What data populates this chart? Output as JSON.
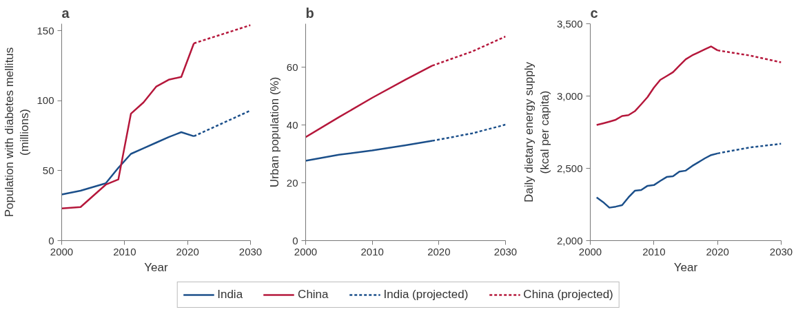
{
  "chart_data": [
    {
      "type": "line",
      "title": "a",
      "xlabel": "Year",
      "ylabel": "Population with diabetes mellitus\n(millions)",
      "xlim": [
        2000,
        2030
      ],
      "ylim": [
        0,
        155
      ],
      "xticks": [
        2000,
        2010,
        2020,
        2030
      ],
      "yticks": [
        0,
        50,
        100,
        150
      ],
      "grid": false,
      "legend": false,
      "series": [
        {
          "color": "#1b4f8a",
          "line_style": "solid",
          "x": [
            2000,
            2003,
            2007,
            2009,
            2011,
            2013,
            2015,
            2017,
            2019,
            2021
          ],
          "values": [
            33,
            35.7,
            41,
            52,
            62,
            66,
            70,
            74,
            77.5,
            74.6
          ]
        },
        {
          "color": "#b5173b",
          "line_style": "solid",
          "x": [
            2000,
            2003,
            2007,
            2009,
            2011,
            2013,
            2015,
            2017,
            2019,
            2021
          ],
          "values": [
            23,
            24,
            40,
            43.7,
            90.7,
            98.8,
            110,
            115,
            117,
            141
          ]
        },
        {
          "color": "#1b4f8a",
          "line_style": "dashed",
          "x": [
            2021,
            2030
          ],
          "values": [
            74.6,
            93
          ]
        },
        {
          "color": "#b5173b",
          "line_style": "dashed",
          "x": [
            2021,
            2030
          ],
          "values": [
            141,
            154
          ]
        }
      ]
    },
    {
      "type": "line",
      "title": "b",
      "ylabel": "Urban population (%)",
      "xlim": [
        2000,
        2030
      ],
      "ylim": [
        0,
        75
      ],
      "xticks": [
        2000,
        2010,
        2020,
        2030
      ],
      "yticks": [
        0,
        20,
        40,
        60
      ],
      "grid": false,
      "legend": "bottom",
      "series": [
        {
          "name": "India",
          "color": "#1b4f8a",
          "line_style": "solid",
          "x": [
            2000,
            2005,
            2010,
            2015,
            2019
          ],
          "values": [
            27.6,
            29.7,
            31.2,
            33,
            34.5
          ]
        },
        {
          "name": "China",
          "color": "#b5173b",
          "line_style": "solid",
          "x": [
            2000,
            2005,
            2010,
            2015,
            2019
          ],
          "values": [
            35.8,
            42.7,
            49.4,
            55.7,
            60.5
          ]
        },
        {
          "name": "India (projected)",
          "color": "#1b4f8a",
          "line_style": "dashed",
          "x": [
            2019,
            2025,
            2030
          ],
          "values": [
            34.5,
            37.1,
            40.1
          ]
        },
        {
          "name": "China (projected)",
          "color": "#b5173b",
          "line_style": "dashed",
          "x": [
            2019,
            2025,
            2030
          ],
          "values": [
            60.5,
            65.4,
            70.6
          ]
        }
      ]
    },
    {
      "type": "line",
      "title": "c",
      "xlabel": "Year",
      "ylabel": "Daily dietary energy supply\n(kcal per capita)",
      "xlim": [
        2000,
        2030
      ],
      "ylim": [
        2000,
        3500
      ],
      "xticks": [
        2000,
        2010,
        2020,
        2030
      ],
      "yticks": [
        {
          "value": 2000,
          "label": "2,000"
        },
        {
          "value": 2500,
          "label": "2,500"
        },
        {
          "value": 3000,
          "label": "3,000"
        },
        {
          "value": 3500,
          "label": "3,500"
        }
      ],
      "grid": false,
      "legend": false,
      "series": [
        {
          "color": "#1b4f8a",
          "line_style": "solid",
          "x": [
            2001,
            2002,
            2003,
            2004,
            2005,
            2006,
            2007,
            2008,
            2009,
            2010,
            2011,
            2012,
            2013,
            2014,
            2015,
            2016,
            2017,
            2018,
            2019,
            2020
          ],
          "values": [
            2299,
            2267,
            2228,
            2235,
            2245,
            2299,
            2345,
            2350,
            2379,
            2384,
            2413,
            2440,
            2445,
            2477,
            2484,
            2516,
            2542,
            2569,
            2592,
            2603
          ]
        },
        {
          "color": "#b5173b",
          "line_style": "solid",
          "x": [
            2001,
            2002,
            2003,
            2004,
            2005,
            2006,
            2007,
            2008,
            2009,
            2010,
            2011,
            2012,
            2013,
            2014,
            2015,
            2016,
            2017,
            2018,
            2019,
            2020
          ],
          "values": [
            2800,
            2811,
            2823,
            2836,
            2862,
            2868,
            2895,
            2943,
            2993,
            3058,
            3112,
            3138,
            3165,
            3210,
            3254,
            3281,
            3302,
            3323,
            3343,
            3316
          ]
        },
        {
          "color": "#1b4f8a",
          "line_style": "dashed",
          "x": [
            2020,
            2025,
            2030
          ],
          "values": [
            2603,
            2644,
            2670
          ]
        },
        {
          "color": "#b5173b",
          "line_style": "dashed",
          "x": [
            2020,
            2025,
            2030
          ],
          "values": [
            3316,
            3281,
            3233
          ]
        }
      ]
    }
  ]
}
